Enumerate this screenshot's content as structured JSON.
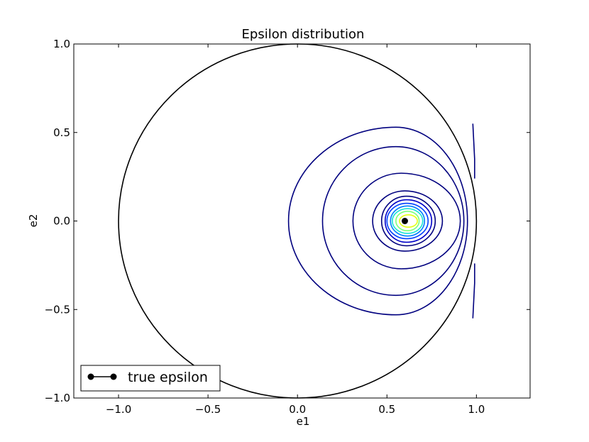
{
  "chart_data": {
    "type": "contour",
    "title": "Epsilon distribution",
    "xlabel": "e1",
    "ylabel": "e2",
    "xlim": [
      -1.25,
      1.3
    ],
    "ylim": [
      -1.0,
      1.0
    ],
    "xticks": [
      -1.0,
      -0.5,
      0.0,
      0.5,
      1.0
    ],
    "xtick_labels": [
      "−1.0",
      "−0.5",
      "0.0",
      "0.5",
      "1.0"
    ],
    "yticks": [
      -1.0,
      -0.5,
      0.0,
      0.5,
      1.0
    ],
    "ytick_labels": [
      "−1.0",
      "−0.5",
      "0.0",
      "0.5",
      "1.0"
    ],
    "unit_circle": {
      "cx": 0.0,
      "cy": 0.0,
      "r": 1.0,
      "color": "#000000"
    },
    "true_point": {
      "e1": 0.6,
      "e2": 0.0,
      "color": "#000000"
    },
    "contours": [
      {
        "left": -0.05,
        "right": 0.95,
        "top": 0.53,
        "bottom": -0.53,
        "peak_x": 0.55,
        "color": "#00007f"
      },
      {
        "left": 0.14,
        "right": 0.93,
        "top": 0.42,
        "bottom": -0.42,
        "peak_x": 0.55,
        "color": "#00007f"
      },
      {
        "left": 0.31,
        "right": 0.91,
        "top": 0.27,
        "bottom": -0.27,
        "peak_x": 0.58,
        "color": "#00007f"
      },
      {
        "left": 0.42,
        "right": 0.81,
        "top": 0.17,
        "bottom": -0.17,
        "peak_x": 0.6,
        "color": "#00007f"
      },
      {
        "left": 0.47,
        "right": 0.77,
        "top": 0.14,
        "bottom": -0.14,
        "peak_x": 0.61,
        "color": "#00007f"
      },
      {
        "left": 0.49,
        "right": 0.75,
        "top": 0.12,
        "bottom": -0.12,
        "peak_x": 0.61,
        "color": "#0000c8"
      },
      {
        "left": 0.5,
        "right": 0.73,
        "top": 0.1,
        "bottom": -0.1,
        "peak_x": 0.61,
        "color": "#0040ff"
      },
      {
        "left": 0.52,
        "right": 0.71,
        "top": 0.085,
        "bottom": -0.085,
        "peak_x": 0.615,
        "color": "#0080ff"
      },
      {
        "left": 0.53,
        "right": 0.7,
        "top": 0.07,
        "bottom": -0.07,
        "peak_x": 0.615,
        "color": "#18e4d4"
      },
      {
        "left": 0.55,
        "right": 0.68,
        "top": 0.055,
        "bottom": -0.055,
        "peak_x": 0.615,
        "color": "#7cff7a"
      },
      {
        "left": 0.57,
        "right": 0.67,
        "top": 0.035,
        "bottom": -0.035,
        "peak_x": 0.62,
        "color": "#e4ff13"
      }
    ],
    "edge_segments": [
      {
        "points": [
          [
            0.98,
            0.55
          ],
          [
            0.985,
            0.45
          ],
          [
            0.99,
            0.35
          ],
          [
            0.99,
            0.24
          ]
        ],
        "color": "#00007f"
      },
      {
        "points": [
          [
            0.98,
            -0.55
          ],
          [
            0.985,
            -0.45
          ],
          [
            0.99,
            -0.35
          ],
          [
            0.99,
            -0.24
          ]
        ],
        "color": "#00007f"
      }
    ],
    "legend": {
      "position": "lower-left",
      "entries": [
        {
          "label": "true epsilon",
          "marker": "circle",
          "color": "#000000"
        }
      ]
    }
  }
}
